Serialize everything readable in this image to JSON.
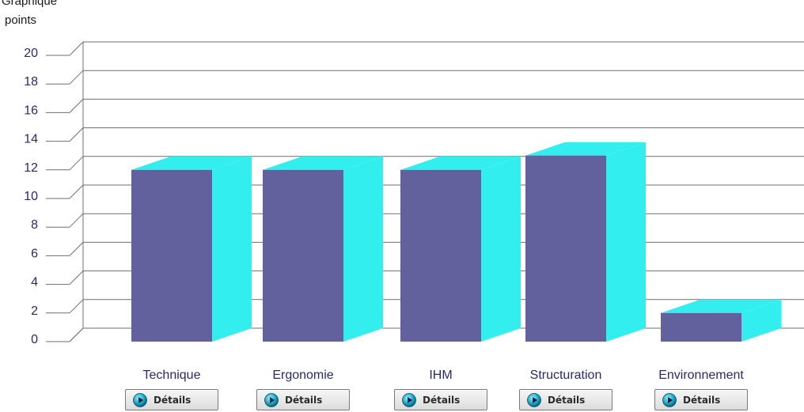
{
  "page": {
    "section_title": "Graphique",
    "unit_label": "points"
  },
  "colors": {
    "bar_front": "#63609e",
    "bar_side": "#33eeee",
    "bar_top": "#33eeee",
    "grid": "#6f6f6f",
    "label": "#2a2a66"
  },
  "chart_data": {
    "type": "bar",
    "title": "",
    "xlabel": "",
    "ylabel": "points",
    "ylim": [
      0,
      20
    ],
    "yticks": [
      0,
      2,
      4,
      6,
      8,
      10,
      12,
      14,
      16,
      18,
      20
    ],
    "categories": [
      "Technique",
      "Ergonomie",
      "IHM",
      "Structuration",
      "Environnement"
    ],
    "values": [
      12,
      12,
      12,
      13,
      2
    ],
    "grid": true,
    "style": "3d"
  },
  "details_buttons": [
    {
      "label": "Détails",
      "icon": "play-circle-icon"
    },
    {
      "label": "Détails",
      "icon": "play-circle-icon"
    },
    {
      "label": "Détails",
      "icon": "play-circle-icon"
    },
    {
      "label": "Détails",
      "icon": "play-circle-icon"
    },
    {
      "label": "Détails",
      "icon": "play-circle-icon"
    }
  ]
}
